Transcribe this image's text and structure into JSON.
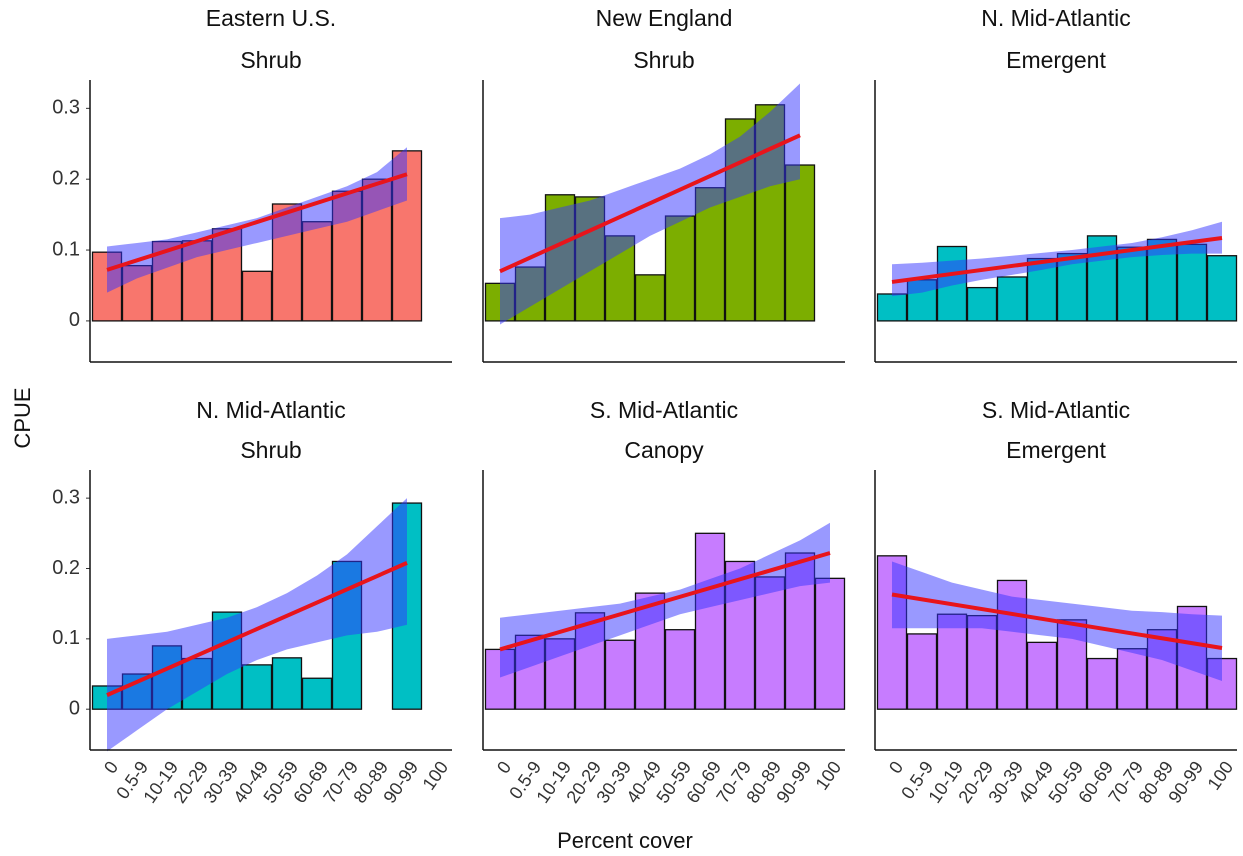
{
  "axis_labels": {
    "y": "CPUE",
    "x": "Percent cover"
  },
  "chart_data": [
    {
      "type": "bar",
      "title": "Eastern U.S.",
      "subtitle": "Shrub",
      "color": "#f8766d",
      "values": [
        0.097,
        0.078,
        0.112,
        0.113,
        0.13,
        0.07,
        0.165,
        0.14,
        0.183,
        0.2,
        0.24,
        null
      ],
      "fit": [
        0.072,
        0.207
      ],
      "band_lower": [
        0.04,
        0.06,
        0.075,
        0.09,
        0.1,
        0.11,
        0.12,
        0.13,
        0.14,
        0.155,
        0.17,
        null
      ],
      "band_upper": [
        0.105,
        0.11,
        0.115,
        0.125,
        0.135,
        0.145,
        0.16,
        0.175,
        0.19,
        0.21,
        0.245,
        null
      ],
      "ylim": [
        -0.058,
        0.34
      ],
      "yticks": [
        0,
        0.1,
        0.2,
        0.3
      ]
    },
    {
      "type": "bar",
      "title": "New England",
      "subtitle": "Shrub",
      "color": "#7cae00",
      "values": [
        0.053,
        0.076,
        0.178,
        0.175,
        0.12,
        0.065,
        0.148,
        0.188,
        0.285,
        0.305,
        0.22,
        null
      ],
      "fit": [
        0.07,
        0.262
      ],
      "band_lower": [
        -0.005,
        0.02,
        0.045,
        0.07,
        0.095,
        0.12,
        0.14,
        0.16,
        0.175,
        0.19,
        0.2,
        null
      ],
      "band_upper": [
        0.145,
        0.15,
        0.16,
        0.17,
        0.185,
        0.2,
        0.215,
        0.235,
        0.26,
        0.295,
        0.335,
        null
      ],
      "ylim": [
        -0.058,
        0.34
      ]
    },
    {
      "type": "bar",
      "title": "N. Mid-Atlantic",
      "subtitle": "Emergent",
      "color": "#00bfc4",
      "values": [
        0.038,
        0.058,
        0.105,
        0.047,
        0.062,
        0.088,
        0.095,
        0.12,
        0.104,
        0.115,
        0.108,
        0.092
      ],
      "fit": [
        0.055,
        0.117
      ],
      "band_lower": [
        0.035,
        0.04,
        0.05,
        0.058,
        0.065,
        0.072,
        0.08,
        0.085,
        0.09,
        0.093,
        0.095,
        0.095
      ],
      "band_upper": [
        0.08,
        0.082,
        0.085,
        0.088,
        0.092,
        0.096,
        0.1,
        0.105,
        0.11,
        0.118,
        0.128,
        0.14
      ],
      "ylim": [
        -0.058,
        0.34
      ]
    },
    {
      "type": "bar",
      "title": "N. Mid-Atlantic",
      "subtitle": "Shrub",
      "color": "#00bfc4",
      "categories": [
        "0",
        "0.5-9",
        "10-19",
        "20-29",
        "30-39",
        "40-49",
        "50-59",
        "60-69",
        "70-79",
        "80-89",
        "90-99",
        "100"
      ],
      "values": [
        0.033,
        0.05,
        0.09,
        0.072,
        0.138,
        0.063,
        0.073,
        0.044,
        0.21,
        null,
        0.293,
        null
      ],
      "fit": [
        0.02,
        0.208
      ],
      "band_lower": [
        -0.06,
        -0.03,
        0,
        0.025,
        0.05,
        0.07,
        0.085,
        0.095,
        0.105,
        0.11,
        0.12,
        null
      ],
      "band_upper": [
        0.1,
        0.105,
        0.11,
        0.12,
        0.13,
        0.145,
        0.165,
        0.19,
        0.22,
        0.26,
        0.3,
        null
      ],
      "ylim": [
        -0.058,
        0.34
      ],
      "yticks": [
        0,
        0.1,
        0.2,
        0.3
      ]
    },
    {
      "type": "bar",
      "title": "S. Mid-Atlantic",
      "subtitle": "Canopy",
      "color": "#c77cff",
      "categories": [
        "0",
        "0.5-9",
        "10-19",
        "20-29",
        "30-39",
        "40-49",
        "50-59",
        "60-69",
        "70-79",
        "80-89",
        "90-99",
        "100"
      ],
      "values": [
        0.085,
        0.105,
        0.1,
        0.137,
        0.098,
        0.165,
        0.113,
        0.25,
        0.21,
        0.188,
        0.222,
        0.186
      ],
      "fit": [
        0.085,
        0.222
      ],
      "band_lower": [
        0.045,
        0.06,
        0.075,
        0.09,
        0.105,
        0.12,
        0.135,
        0.145,
        0.155,
        0.165,
        0.175,
        0.18
      ],
      "band_upper": [
        0.13,
        0.135,
        0.14,
        0.145,
        0.15,
        0.16,
        0.17,
        0.185,
        0.2,
        0.22,
        0.24,
        0.265
      ],
      "ylim": [
        -0.058,
        0.34
      ]
    },
    {
      "type": "bar",
      "title": "S. Mid-Atlantic",
      "subtitle": "Emergent",
      "color": "#c77cff",
      "categories": [
        "0",
        "0.5-9",
        "10-19",
        "20-29",
        "30-39",
        "40-49",
        "50-59",
        "60-69",
        "70-79",
        "80-89",
        "90-99",
        "100"
      ],
      "values": [
        0.218,
        0.107,
        0.135,
        0.133,
        0.183,
        0.095,
        0.127,
        0.072,
        0.086,
        0.113,
        0.146,
        0.072
      ],
      "fit": [
        0.163,
        0.087
      ],
      "band_lower": [
        0.115,
        0.115,
        0.115,
        0.115,
        0.11,
        0.105,
        0.1,
        0.09,
        0.08,
        0.07,
        0.055,
        0.04
      ],
      "band_upper": [
        0.21,
        0.195,
        0.18,
        0.17,
        0.16,
        0.155,
        0.15,
        0.145,
        0.14,
        0.138,
        0.135,
        0.133
      ],
      "ylim": [
        -0.058,
        0.34
      ]
    }
  ]
}
